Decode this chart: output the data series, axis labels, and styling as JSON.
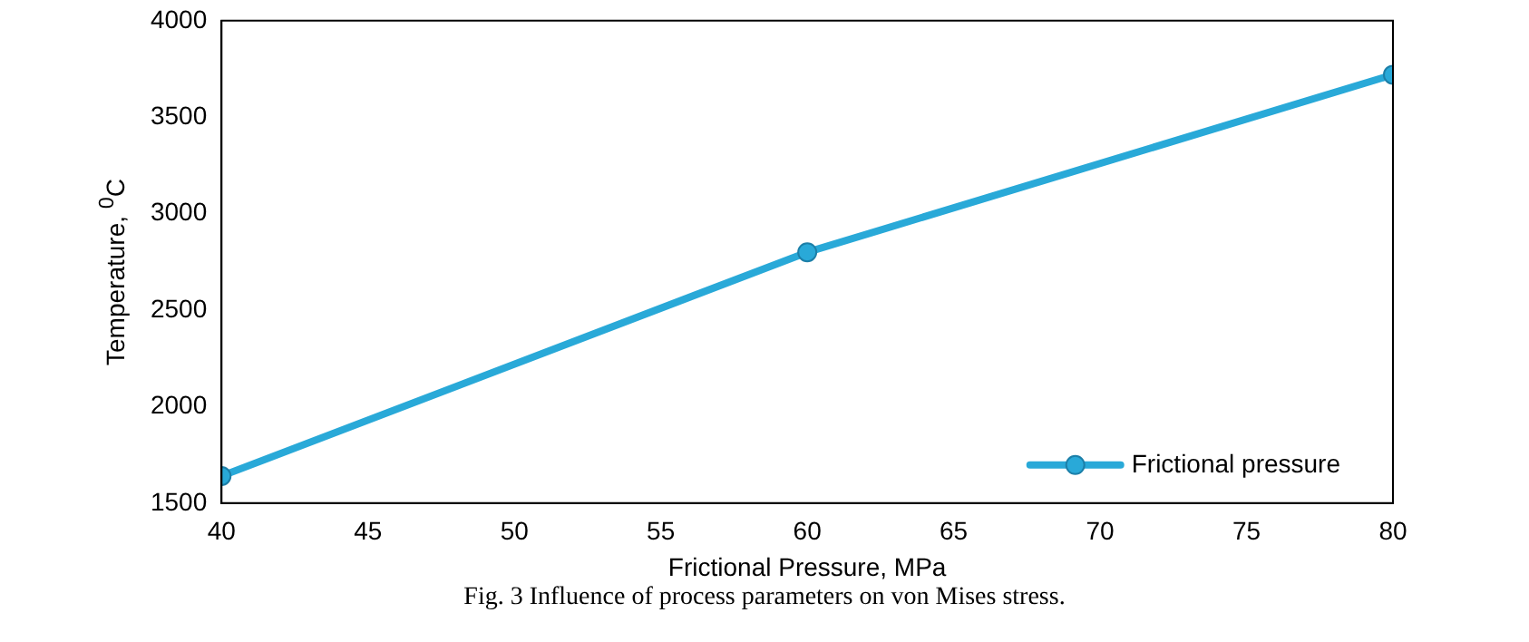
{
  "chart_data": {
    "type": "line",
    "xlabel": "Frictional Pressure, MPa",
    "ylabel": "Temperature, $^{0}$C",
    "x": [
      40,
      60,
      80
    ],
    "series": [
      {
        "name": "Frictional pressure",
        "color": "#29a9d8",
        "values": [
          1640,
          2800,
          3720
        ]
      }
    ],
    "xlim": [
      40,
      80
    ],
    "xticks": [
      40,
      45,
      50,
      55,
      60,
      65,
      70,
      75,
      80
    ],
    "ylim": [
      1500,
      4000
    ],
    "yticks": [
      1500,
      2000,
      2500,
      3000,
      3500,
      4000
    ],
    "grid": false,
    "legend": "bottom right",
    "marker": "circle",
    "line_style": "solid",
    "annotations": [
      "Fig. 3 Influence of process parameters on von Mises stress."
    ]
  }
}
